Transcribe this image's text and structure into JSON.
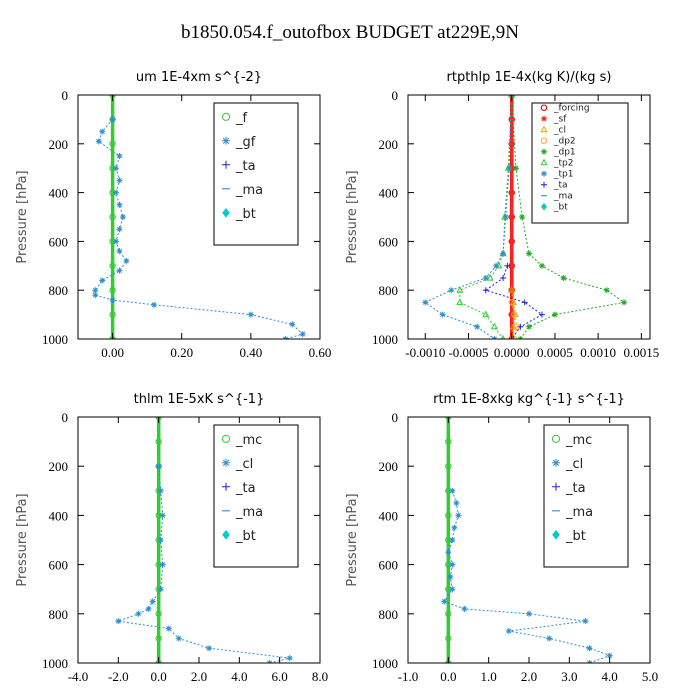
{
  "figure_title": "b1850.054.f_outofbox  BUDGET at229E,9N",
  "chart_data": [
    {
      "type": "line",
      "title": "um   1E-4xm s^{-2}",
      "ylabel": "Pressure [hPa]",
      "xlim": [
        -0.1,
        0.6
      ],
      "ylim": [
        1000,
        0
      ],
      "xticks": [
        "0.00",
        "0.20",
        "0.40",
        "0.60"
      ],
      "xtick_values": [
        0.0,
        0.2,
        0.4,
        0.6
      ],
      "yticks": [
        "0",
        "200",
        "400",
        "600",
        "800",
        "1000"
      ],
      "ytick_values": [
        0,
        200,
        400,
        600,
        800,
        1000
      ],
      "legend": "top-right",
      "legend_font": 13,
      "series": [
        {
          "name": "_f",
          "color": "#33cc33",
          "marker": "circle",
          "p": [
            0,
            100,
            200,
            300,
            400,
            500,
            600,
            700,
            800,
            900,
            1000
          ],
          "x": [
            0,
            0,
            0,
            0,
            0,
            0,
            0,
            0,
            0,
            0,
            0
          ]
        },
        {
          "name": "_gf",
          "color": "#2f8fcf",
          "marker": "star",
          "p": [
            100,
            150,
            190,
            250,
            300,
            350,
            400,
            450,
            500,
            550,
            600,
            640,
            680,
            720,
            760,
            800,
            820,
            840,
            860,
            900,
            940,
            980,
            1000
          ],
          "x": [
            0,
            -0.03,
            -0.04,
            0.02,
            0.01,
            0.02,
            0.01,
            0.02,
            0.03,
            0.02,
            0.01,
            0.02,
            0.04,
            0.02,
            -0.03,
            -0.05,
            -0.05,
            0.0,
            0.12,
            0.4,
            0.52,
            0.55,
            0.5
          ]
        },
        {
          "name": "_ta",
          "color": "#2222cc",
          "marker": "plus",
          "p": [],
          "x": []
        },
        {
          "name": "_ma",
          "color": "#4a90d9",
          "marker": "dash",
          "p": [],
          "x": []
        },
        {
          "name": "_bt",
          "color": "#00cccc",
          "marker": "diamond",
          "p": [],
          "x": []
        }
      ]
    },
    {
      "type": "line",
      "title": "rtpthlp   1E-4x(kg K)/(kg s)",
      "ylabel": "Pressure [hPa]",
      "xlim": [
        -0.0012,
        0.0016
      ],
      "ylim": [
        1000,
        0
      ],
      "xticks": [
        "-0.0010",
        "-0.0005",
        "0.0000",
        "0.0005",
        "0.0010",
        "0.0015"
      ],
      "xtick_values": [
        -0.001,
        -0.0005,
        0.0,
        0.0005,
        0.001,
        0.0015
      ],
      "yticks": [
        "0",
        "200",
        "400",
        "600",
        "800",
        "1000"
      ],
      "ytick_values": [
        0,
        200,
        400,
        600,
        800,
        1000
      ],
      "legend": "top-right",
      "legend_font": 9,
      "series": [
        {
          "name": "_forcing",
          "color": "#cc0000",
          "marker": "circle",
          "p": [
            0,
            100,
            200,
            300,
            400,
            500,
            600,
            700,
            800,
            900,
            1000
          ],
          "x": [
            0,
            0,
            0,
            0,
            0,
            0,
            0,
            0,
            0,
            0,
            0
          ]
        },
        {
          "name": "_sf",
          "color": "#ff2222",
          "marker": "star",
          "p": [
            0,
            100,
            200,
            300,
            400,
            500,
            600,
            700,
            800,
            900,
            1000
          ],
          "x": [
            0,
            0,
            0,
            0,
            0,
            0,
            0,
            0,
            0,
            0,
            0
          ]
        },
        {
          "name": "_cl",
          "color": "#e8a000",
          "marker": "triangle",
          "p": [
            800,
            850,
            900,
            950,
            1000
          ],
          "x": [
            0,
            2e-05,
            4e-05,
            2e-05,
            0
          ]
        },
        {
          "name": "_dp2",
          "color": "#ffaa33",
          "marker": "circle",
          "p": [
            850,
            900,
            950,
            1000
          ],
          "x": [
            0,
            3e-05,
            6e-05,
            3e-05
          ]
        },
        {
          "name": "_dp1",
          "color": "#22aa22",
          "marker": "star",
          "p": [
            0,
            300,
            500,
            650,
            700,
            750,
            800,
            850,
            900,
            950,
            1000
          ],
          "x": [
            0,
            5e-05,
            0.00012,
            0.0002,
            0.00035,
            0.0006,
            0.0011,
            0.0013,
            0.0005,
            0.0002,
            0.0001
          ]
        },
        {
          "name": "_tp2",
          "color": "#33cc33",
          "marker": "triangle",
          "p": [
            0,
            300,
            500,
            650,
            700,
            750,
            800,
            850,
            900,
            950,
            1000
          ],
          "x": [
            0,
            -4e-05,
            -8e-05,
            -0.0001,
            -0.00015,
            -0.00025,
            -0.0006,
            -0.0006,
            -0.0003,
            -0.0002,
            -0.0001
          ]
        },
        {
          "name": "_tp1",
          "color": "#2f8fcf",
          "marker": "star",
          "p": [
            0,
            300,
            500,
            650,
            700,
            750,
            800,
            850,
            900,
            950,
            1000
          ],
          "x": [
            0,
            -3e-05,
            -7e-05,
            -0.0001,
            -0.00018,
            -0.0003,
            -0.0007,
            -0.001,
            -0.0008,
            -0.0004,
            -0.0002
          ]
        },
        {
          "name": "_ta",
          "color": "#2222cc",
          "marker": "plus",
          "p": [
            700,
            750,
            800,
            850,
            900,
            950,
            1000
          ],
          "x": [
            -5e-05,
            -0.0001,
            -0.0003,
            0.00015,
            0.00035,
            0.0001,
            0
          ]
        },
        {
          "name": "_ma",
          "color": "#4a90d9",
          "marker": "dash",
          "p": [],
          "x": []
        },
        {
          "name": "_bt",
          "color": "#00cccc",
          "marker": "diamond",
          "p": [],
          "x": []
        }
      ]
    },
    {
      "type": "line",
      "title": "thlm   1E-5xK s^{-1}",
      "ylabel": "Pressure [hPa]",
      "xlim": [
        -4.0,
        8.0
      ],
      "ylim": [
        1000,
        0
      ],
      "xticks": [
        "-4.0",
        "-2.0",
        "0.0",
        "2.0",
        "4.0",
        "6.0",
        "8.0"
      ],
      "xtick_values": [
        -4,
        -2,
        0,
        2,
        4,
        6,
        8
      ],
      "yticks": [
        "0",
        "200",
        "400",
        "600",
        "800",
        "1000"
      ],
      "ytick_values": [
        0,
        200,
        400,
        600,
        800,
        1000
      ],
      "legend": "top-right",
      "legend_font": 13,
      "series": [
        {
          "name": "_mc",
          "color": "#33cc33",
          "marker": "circle",
          "p": [
            0,
            100,
            200,
            300,
            400,
            500,
            600,
            700,
            800,
            900,
            1000
          ],
          "x": [
            0,
            0,
            0,
            0,
            0,
            0,
            0,
            0,
            0,
            0,
            0
          ]
        },
        {
          "name": "_cl",
          "color": "#2f8fcf",
          "marker": "star",
          "p": [
            200,
            300,
            400,
            500,
            600,
            700,
            750,
            780,
            800,
            830,
            860,
            900,
            940,
            980,
            1000
          ],
          "x": [
            0,
            0.1,
            0.2,
            0.1,
            0.2,
            0.1,
            -0.3,
            -0.5,
            -1.0,
            -2.0,
            0.5,
            1.0,
            2.5,
            6.5,
            5.5
          ]
        },
        {
          "name": "_ta",
          "color": "#2222cc",
          "marker": "plus",
          "p": [],
          "x": []
        },
        {
          "name": "_ma",
          "color": "#4a90d9",
          "marker": "dash",
          "p": [],
          "x": []
        },
        {
          "name": "_bt",
          "color": "#00cccc",
          "marker": "diamond",
          "p": [],
          "x": []
        }
      ]
    },
    {
      "type": "line",
      "title": "rtm   1E-8xkg kg^{-1} s^{-1}",
      "ylabel": "Pressure [hPa]",
      "xlim": [
        -1.0,
        5.0
      ],
      "ylim": [
        1000,
        0
      ],
      "xticks": [
        "-1.0",
        "0.0",
        "1.0",
        "2.0",
        "3.0",
        "4.0",
        "5.0"
      ],
      "xtick_values": [
        -1,
        0,
        1,
        2,
        3,
        4,
        5
      ],
      "yticks": [
        "0",
        "200",
        "400",
        "600",
        "800",
        "1000"
      ],
      "ytick_values": [
        0,
        200,
        400,
        600,
        800,
        1000
      ],
      "legend": "top-right",
      "legend_font": 13,
      "series": [
        {
          "name": "_mc",
          "color": "#33cc33",
          "marker": "circle",
          "p": [
            0,
            100,
            200,
            300,
            400,
            500,
            600,
            700,
            800,
            900,
            1000
          ],
          "x": [
            0,
            0,
            0,
            0,
            0,
            0,
            0,
            0,
            0,
            0,
            0
          ]
        },
        {
          "name": "_cl",
          "color": "#2f8fcf",
          "marker": "star",
          "p": [
            300,
            350,
            400,
            450,
            500,
            550,
            600,
            650,
            700,
            750,
            780,
            800,
            830,
            870,
            900,
            940,
            970,
            1000
          ],
          "x": [
            0.1,
            0.2,
            0.25,
            0.15,
            0.1,
            0.0,
            0.1,
            0.05,
            0.1,
            -0.1,
            0.4,
            2.0,
            3.4,
            1.5,
            2.5,
            3.5,
            4.0,
            3.5
          ]
        },
        {
          "name": "_ta",
          "color": "#2222cc",
          "marker": "plus",
          "p": [],
          "x": []
        },
        {
          "name": "_ma",
          "color": "#4a90d9",
          "marker": "dash",
          "p": [],
          "x": []
        },
        {
          "name": "_bt",
          "color": "#00cccc",
          "marker": "diamond",
          "p": [],
          "x": []
        }
      ]
    }
  ]
}
